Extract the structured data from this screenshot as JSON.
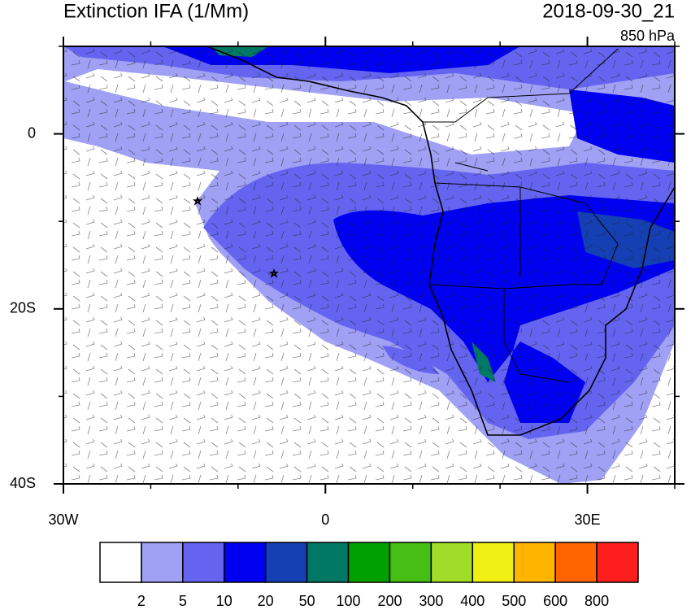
{
  "chart_data": {
    "type": "map",
    "title": "Extinction IFA (1/Mm)",
    "datetime": "2018-09-30_21",
    "level": "850 hPa",
    "xlim": [
      -30,
      40
    ],
    "ylim": [
      -40,
      10
    ],
    "xticks": [
      {
        "value": -30,
        "label": "30W"
      },
      0,
      {
        "value": 30,
        "label": "30E"
      }
    ],
    "yticks": [
      0,
      {
        "value": -20,
        "label": "20S"
      },
      {
        "value": -40,
        "label": "40S"
      }
    ],
    "xminorticks": [
      -20,
      -10,
      10,
      20,
      40
    ],
    "yminorticks": [
      10,
      -10,
      -30
    ],
    "colorbar": {
      "colors": [
        "#ffffff",
        "#a0a0f5",
        "#6464f0",
        "#0000f0",
        "#1440b4",
        "#007864",
        "#00a000",
        "#46be14",
        "#a0dc28",
        "#f0f014",
        "#ffb400",
        "#ff6400",
        "#ff1e1e"
      ],
      "labels": [
        2,
        5,
        10,
        20,
        50,
        100,
        200,
        300,
        400,
        500,
        600,
        800
      ]
    }
  }
}
